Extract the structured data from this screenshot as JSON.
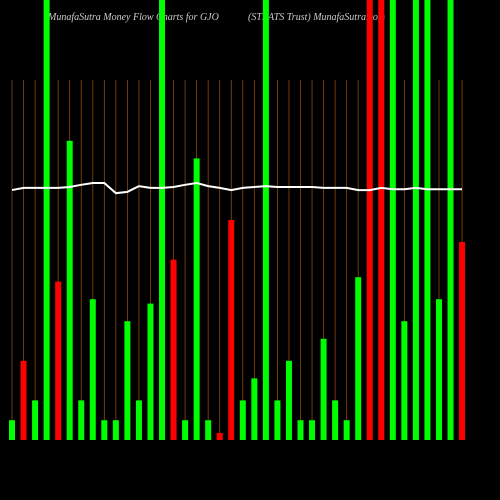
{
  "chart_data": {
    "type": "bar",
    "title": "MunafaSutra  Money Flow  Charts for GJO",
    "subtitle": "(STRATS Trust) MunafaSutra.com",
    "ylim": [
      0,
      100
    ],
    "bars": {
      "values": [
        4.5,
        18,
        9,
        100,
        36,
        68,
        9,
        32,
        4.5,
        4.5,
        27,
        9,
        31,
        100,
        41,
        4.5,
        64,
        4.5,
        1.6,
        50,
        9,
        14,
        100,
        9,
        18,
        4.5,
        4.5,
        23,
        9,
        4.5,
        37,
        100,
        100,
        100,
        27,
        100,
        100,
        32,
        100,
        45
      ],
      "colors": [
        "#00ff00",
        "#ff0000",
        "#00ff00",
        "#00ff00",
        "#ff0000",
        "#00ff00",
        "#00ff00",
        "#00ff00",
        "#00ff00",
        "#00ff00",
        "#00ff00",
        "#00ff00",
        "#00ff00",
        "#00ff00",
        "#ff0000",
        "#00ff00",
        "#00ff00",
        "#00ff00",
        "#ff0000",
        "#ff0000",
        "#00ff00",
        "#00ff00",
        "#00ff00",
        "#00ff00",
        "#00ff00",
        "#00ff00",
        "#00ff00",
        "#00ff00",
        "#00ff00",
        "#00ff00",
        "#00ff00",
        "#ff0000",
        "#ff0000",
        "#00ff00",
        "#00ff00",
        "#00ff00",
        "#00ff00",
        "#00ff00",
        "#00ff00",
        "#ff0000"
      ]
    },
    "line": {
      "color": "#ffffff",
      "values": [
        56.8,
        57.3,
        57.3,
        57.3,
        57.3,
        57.5,
        58.0,
        58.4,
        58.4,
        56.1,
        56.4,
        57.7,
        57.3,
        57.3,
        57.5,
        58.0,
        58.4,
        57.7,
        57.3,
        56.8,
        57.3,
        57.5,
        57.7,
        57.5,
        57.5,
        57.5,
        57.5,
        57.3,
        57.3,
        57.3,
        56.8,
        56.8,
        57.3,
        57.0,
        57.0,
        57.3,
        57.0,
        57.0,
        57.0,
        57.0
      ]
    }
  }
}
